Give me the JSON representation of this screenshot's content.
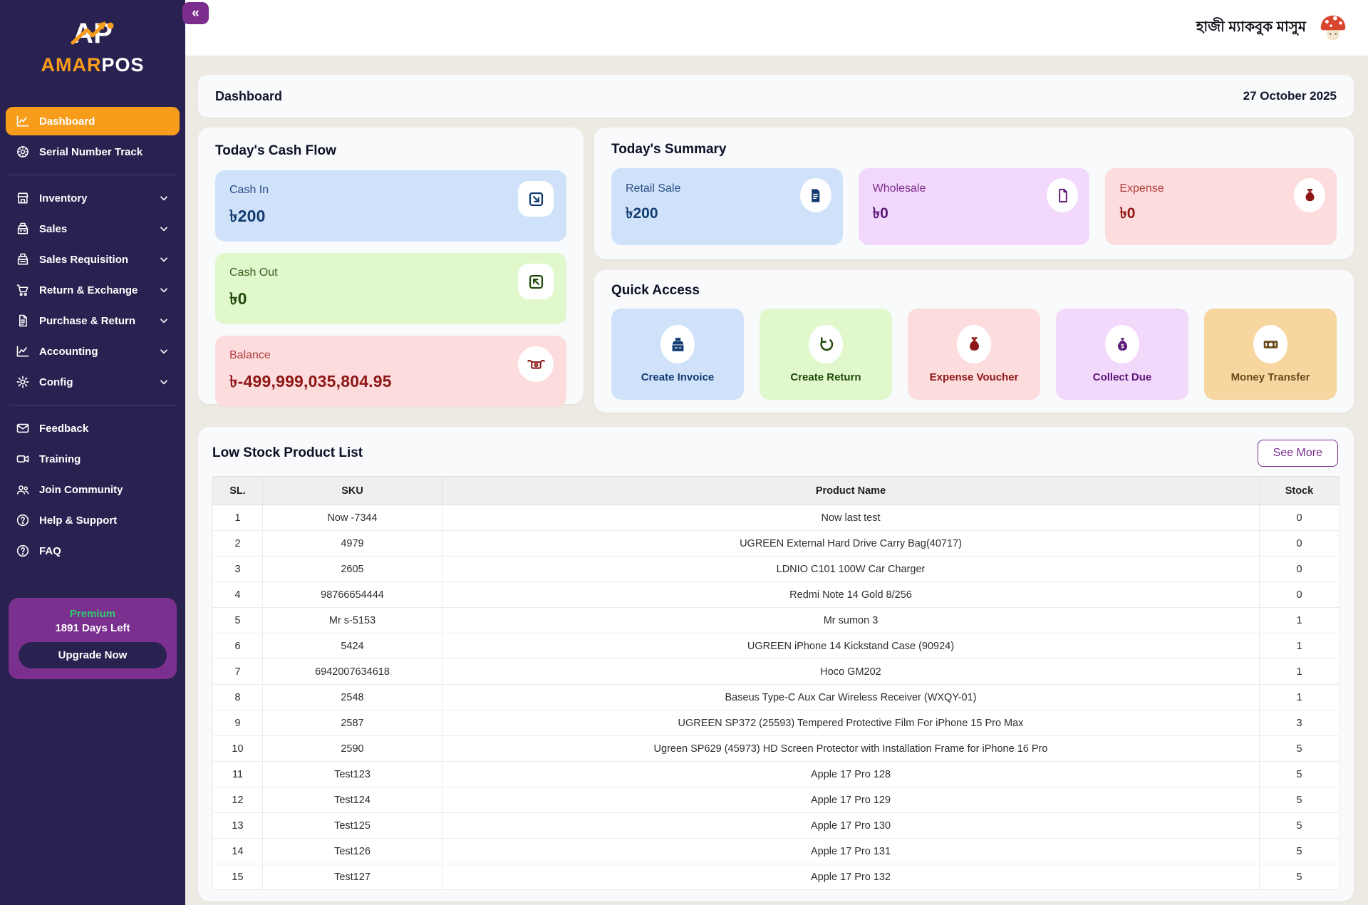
{
  "colors": {
    "sidebar_bg": "#292250",
    "accent_orange": "#F89C1C",
    "brand_purple": "#7B2D8E",
    "premium_green": "#2FCB6F",
    "page_bg": "#ECEAE3",
    "card_bg": "#F8FAFC"
  },
  "topbar": {
    "username": "হাজী ম্যাকবুক মাসুম",
    "avatar_icon": "mushroom-avatar-icon"
  },
  "sidebar": {
    "brand": {
      "logo_icon": "amarpos-logo-icon",
      "name_primary": "AMAR",
      "name_secondary": "POS"
    },
    "collapse_label": "«",
    "menu_top": [
      {
        "label": "Dashboard",
        "icon": "dashboard-icon",
        "active": true
      },
      {
        "label": "Serial Number Track",
        "icon": "serial-number-icon"
      }
    ],
    "menu_modules": [
      {
        "label": "Inventory",
        "icon": "inventory-icon",
        "chevron_icon": "chevron-down-icon"
      },
      {
        "label": "Sales",
        "icon": "sales-icon",
        "chevron_icon": "chevron-down-icon"
      },
      {
        "label": "Sales Requisition",
        "icon": "sales-requisition-icon",
        "chevron_icon": "chevron-down-icon"
      },
      {
        "label": "Return & Exchange",
        "icon": "return-exchange-icon",
        "chevron_icon": "chevron-down-icon"
      },
      {
        "label": "Purchase & Return",
        "icon": "purchase-return-icon",
        "chevron_icon": "chevron-down-icon"
      },
      {
        "label": "Accounting",
        "icon": "accounting-icon",
        "chevron_icon": "chevron-down-icon"
      },
      {
        "label": "Config",
        "icon": "config-icon",
        "chevron_icon": "chevron-down-icon"
      }
    ],
    "menu_support": [
      {
        "label": "Feedback",
        "icon": "feedback-icon"
      },
      {
        "label": "Training",
        "icon": "training-icon"
      },
      {
        "label": "Join Community",
        "icon": "community-icon"
      },
      {
        "label": "Help & Support",
        "icon": "help-icon"
      },
      {
        "label": "FAQ",
        "icon": "faq-icon"
      }
    ],
    "premium": {
      "tier": "Premium",
      "days_left": "1891 Days Left",
      "cta": "Upgrade Now"
    }
  },
  "header": {
    "title": "Dashboard",
    "date": "27 October 2025"
  },
  "cash_flow": {
    "title": "Today's Cash Flow",
    "tiles": [
      {
        "label": "Cash In",
        "value": "৳200",
        "tone": "tone-blue",
        "badge": "badge-square",
        "icon": "cash-in-icon"
      },
      {
        "label": "Cash Out",
        "value": "৳0",
        "tone": "tone-green",
        "badge": "badge-square",
        "icon": "cash-out-icon"
      },
      {
        "label": "Balance",
        "value": "৳-499,999,035,804.95",
        "tone": "tone-pink",
        "badge": "badge-round",
        "icon": "balance-icon"
      }
    ]
  },
  "summary": {
    "title": "Today's Summary",
    "tiles": [
      {
        "label": "Retail Sale",
        "value": "৳200",
        "tone": "tone-blue",
        "icon": "retail-sale-icon"
      },
      {
        "label": "Wholesale",
        "value": "৳0",
        "tone": "tone-purple",
        "icon": "wholesale-icon"
      },
      {
        "label": "Expense",
        "value": "৳0",
        "tone": "tone-pink",
        "icon": "expense-icon"
      }
    ]
  },
  "quick_access": {
    "title": "Quick Access",
    "items": [
      {
        "label": "Create Invoice",
        "tone": "tone-blue",
        "icon": "create-invoice-icon"
      },
      {
        "label": "Create Return",
        "tone": "tone-green",
        "icon": "create-return-icon"
      },
      {
        "label": "Expense Voucher",
        "tone": "tone-pink",
        "icon": "expense-voucher-icon"
      },
      {
        "label": "Collect Due",
        "tone": "tone-purple",
        "icon": "collect-due-icon"
      },
      {
        "label": "Money Transfer",
        "tone": "tone-orange",
        "icon": "money-transfer-icon"
      }
    ]
  },
  "low_stock": {
    "title": "Low Stock Product List",
    "see_more": "See More",
    "columns": [
      "SL.",
      "SKU",
      "Product Name",
      "Stock"
    ],
    "rows": [
      {
        "sl": "1",
        "sku": "Now -7344",
        "name": "Now last test",
        "stock": "0"
      },
      {
        "sl": "2",
        "sku": "4979",
        "name": "UGREEN External Hard Drive Carry Bag(40717)",
        "stock": "0"
      },
      {
        "sl": "3",
        "sku": "2605",
        "name": "LDNIO C101 100W Car Charger",
        "stock": "0"
      },
      {
        "sl": "4",
        "sku": "98766654444",
        "name": "Redmi Note 14 Gold 8/256",
        "stock": "0"
      },
      {
        "sl": "5",
        "sku": "Mr s-5153",
        "name": "Mr sumon 3",
        "stock": "1"
      },
      {
        "sl": "6",
        "sku": "5424",
        "name": "UGREEN iPhone 14 Kickstand Case (90924)",
        "stock": "1"
      },
      {
        "sl": "7",
        "sku": "6942007634618",
        "name": "Hoco GM202",
        "stock": "1"
      },
      {
        "sl": "8",
        "sku": "2548",
        "name": "Baseus Type-C Aux Car Wireless Receiver (WXQY-01)",
        "stock": "1"
      },
      {
        "sl": "9",
        "sku": "2587",
        "name": "UGREEN SP372 (25593) Tempered Protective Film For iPhone 15 Pro Max",
        "stock": "3"
      },
      {
        "sl": "10",
        "sku": "2590",
        "name": "Ugreen SP629 (45973) HD Screen Protector with Installation Frame for iPhone 16 Pro",
        "stock": "5"
      },
      {
        "sl": "11",
        "sku": "Test123",
        "name": "Apple 17 Pro 128",
        "stock": "5"
      },
      {
        "sl": "12",
        "sku": "Test124",
        "name": "Apple 17 Pro 129",
        "stock": "5"
      },
      {
        "sl": "13",
        "sku": "Test125",
        "name": "Apple 17 Pro 130",
        "stock": "5"
      },
      {
        "sl": "14",
        "sku": "Test126",
        "name": "Apple 17 Pro 131",
        "stock": "5"
      },
      {
        "sl": "15",
        "sku": "Test127",
        "name": "Apple 17 Pro 132",
        "stock": "5"
      }
    ]
  }
}
